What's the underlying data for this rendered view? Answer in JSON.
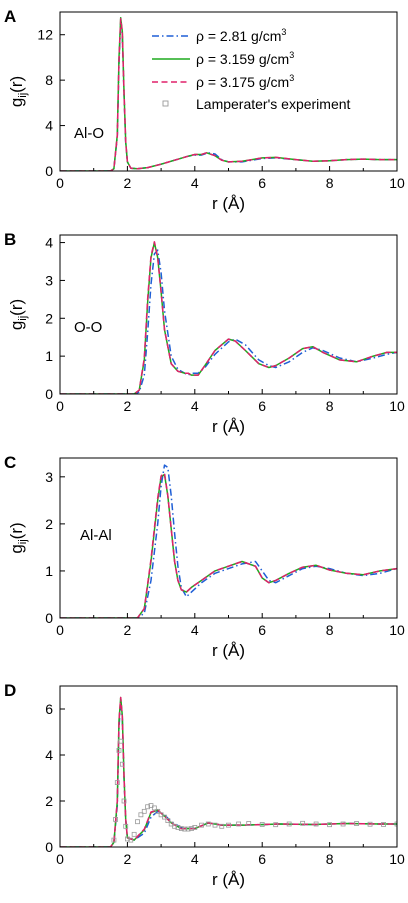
{
  "legend": {
    "entries": [
      {
        "label": "ρ = 2.81 g/cm",
        "sup": "3"
      },
      {
        "label": "ρ = 3.159 g/cm",
        "sup": "3"
      },
      {
        "label": "ρ = 3.175 g/cm",
        "sup": "3"
      },
      {
        "label": "Lamperater's experiment",
        "sup": ""
      }
    ]
  },
  "colors": {
    "rho_2_81": "#1f5fd6",
    "rho_3_159": "#1faa1f",
    "rho_3_175": "#e0206a",
    "experiment": "#9a9a9a"
  },
  "chart_data": [
    {
      "type": "line",
      "panel_letter": "A",
      "annotation": "Al-O",
      "xlabel": "r (Å)",
      "ylabel": "g",
      "ylabel_sub": "ij",
      "ylabel_suffix": "(r)",
      "xlim": [
        0,
        10
      ],
      "ylim": [
        0,
        14
      ],
      "xticks": [
        0,
        2,
        4,
        6,
        8,
        10
      ],
      "yticks": [
        0,
        4,
        8,
        12
      ],
      "series": [
        {
          "name": "ρ = 2.81 g/cm3",
          "style": "dashdot",
          "color": "#1f5fd6",
          "x": [
            0,
            1.5,
            1.6,
            1.7,
            1.75,
            1.8,
            1.85,
            1.9,
            1.95,
            2.0,
            2.1,
            2.3,
            2.6,
            3.0,
            3.4,
            3.8,
            4.0,
            4.2,
            4.4,
            4.6,
            4.8,
            5.0,
            5.4,
            6.0,
            6.4,
            7.0,
            7.5,
            8.0,
            8.5,
            9.0,
            9.5,
            10
          ],
          "y": [
            0,
            0,
            0.2,
            3.0,
            9.5,
            13.2,
            12.0,
            6.8,
            2.5,
            0.8,
            0.25,
            0.2,
            0.3,
            0.6,
            0.95,
            1.3,
            1.4,
            1.4,
            1.6,
            1.5,
            1.0,
            0.8,
            0.8,
            1.1,
            1.15,
            1.0,
            0.85,
            0.9,
            1.0,
            1.05,
            1.0,
            1.0
          ]
        },
        {
          "name": "ρ = 3.159 g/cm3",
          "style": "solid",
          "color": "#1faa1f",
          "x": [
            0,
            1.5,
            1.6,
            1.7,
            1.75,
            1.8,
            1.85,
            1.9,
            1.95,
            2.0,
            2.1,
            2.3,
            2.6,
            3.0,
            3.4,
            3.8,
            4.0,
            4.2,
            4.35,
            4.6,
            4.8,
            5.0,
            5.4,
            6.0,
            6.4,
            7.0,
            7.5,
            8.0,
            8.5,
            9.0,
            9.5,
            10
          ],
          "y": [
            0,
            0,
            0.2,
            3.2,
            10.0,
            13.5,
            12.3,
            7.0,
            2.6,
            0.8,
            0.25,
            0.2,
            0.3,
            0.6,
            0.95,
            1.3,
            1.45,
            1.45,
            1.6,
            1.35,
            0.95,
            0.8,
            0.85,
            1.15,
            1.2,
            1.0,
            0.85,
            0.9,
            1.0,
            1.05,
            1.0,
            1.0
          ]
        },
        {
          "name": "ρ = 3.175 g/cm3",
          "style": "dashed",
          "color": "#e0206a",
          "x": [
            0,
            1.5,
            1.6,
            1.7,
            1.75,
            1.8,
            1.85,
            1.9,
            1.95,
            2.0,
            2.1,
            2.3,
            2.6,
            3.0,
            3.4,
            3.8,
            4.0,
            4.2,
            4.35,
            4.6,
            4.8,
            5.0,
            5.4,
            6.0,
            6.4,
            7.0,
            7.5,
            8.0,
            8.5,
            9.0,
            9.5,
            10
          ],
          "y": [
            0,
            0,
            0.2,
            3.1,
            9.8,
            13.4,
            12.2,
            6.9,
            2.6,
            0.8,
            0.25,
            0.2,
            0.3,
            0.6,
            0.95,
            1.3,
            1.45,
            1.45,
            1.6,
            1.35,
            0.95,
            0.8,
            0.85,
            1.15,
            1.2,
            1.0,
            0.85,
            0.9,
            1.0,
            1.05,
            1.0,
            1.0
          ]
        }
      ]
    },
    {
      "type": "line",
      "panel_letter": "B",
      "annotation": "O-O",
      "xlabel": "r (Å)",
      "ylabel": "g",
      "ylabel_sub": "ij",
      "ylabel_suffix": "(r)",
      "xlim": [
        0,
        10
      ],
      "ylim": [
        0,
        4.2
      ],
      "xticks": [
        0,
        2,
        4,
        6,
        8,
        10
      ],
      "yticks": [
        0,
        1,
        2,
        3,
        4
      ],
      "series": [
        {
          "name": "ρ = 2.81 g/cm3",
          "style": "dashdot",
          "color": "#1f5fd6",
          "x": [
            0,
            2.2,
            2.35,
            2.5,
            2.6,
            2.7,
            2.8,
            2.9,
            3.0,
            3.1,
            3.3,
            3.5,
            3.7,
            3.8,
            3.9,
            4.1,
            4.3,
            4.6,
            5.0,
            5.2,
            5.5,
            5.9,
            6.2,
            6.4,
            6.8,
            7.2,
            7.5,
            7.8,
            8.3,
            8.8,
            9.3,
            9.7,
            10
          ],
          "y": [
            0,
            0,
            0.05,
            0.5,
            1.6,
            2.9,
            3.7,
            3.8,
            3.2,
            2.2,
            1.0,
            0.65,
            0.55,
            0.5,
            0.55,
            0.55,
            0.7,
            1.05,
            1.38,
            1.45,
            1.3,
            0.9,
            0.75,
            0.7,
            0.85,
            1.1,
            1.22,
            1.15,
            0.95,
            0.85,
            0.95,
            1.05,
            1.1
          ]
        },
        {
          "name": "ρ = 3.159 g/cm3",
          "style": "solid",
          "color": "#1faa1f",
          "x": [
            0,
            2.2,
            2.35,
            2.5,
            2.6,
            2.7,
            2.8,
            2.9,
            3.0,
            3.1,
            3.3,
            3.5,
            3.7,
            3.8,
            3.9,
            4.1,
            4.3,
            4.6,
            5.0,
            5.2,
            5.5,
            5.9,
            6.2,
            6.4,
            6.8,
            7.2,
            7.5,
            7.8,
            8.3,
            8.8,
            9.3,
            9.7,
            10
          ],
          "y": [
            0,
            0,
            0.1,
            0.9,
            2.4,
            3.6,
            4.0,
            3.6,
            2.7,
            1.7,
            0.8,
            0.6,
            0.55,
            0.55,
            0.5,
            0.5,
            0.75,
            1.15,
            1.45,
            1.4,
            1.15,
            0.8,
            0.7,
            0.75,
            0.95,
            1.2,
            1.25,
            1.1,
            0.9,
            0.85,
            1.0,
            1.1,
            1.1
          ]
        },
        {
          "name": "ρ = 3.175 g/cm3",
          "style": "dashed",
          "color": "#e0206a",
          "x": [
            0,
            2.2,
            2.35,
            2.5,
            2.6,
            2.7,
            2.8,
            2.9,
            3.0,
            3.1,
            3.3,
            3.5,
            3.7,
            3.8,
            3.9,
            4.1,
            4.3,
            4.6,
            5.0,
            5.2,
            5.5,
            5.9,
            6.2,
            6.4,
            6.8,
            7.2,
            7.5,
            7.8,
            8.3,
            8.8,
            9.3,
            9.7,
            10
          ],
          "y": [
            0,
            0,
            0.1,
            0.95,
            2.5,
            3.65,
            4.02,
            3.6,
            2.7,
            1.7,
            0.8,
            0.6,
            0.55,
            0.55,
            0.5,
            0.5,
            0.75,
            1.15,
            1.45,
            1.4,
            1.15,
            0.8,
            0.7,
            0.75,
            0.95,
            1.2,
            1.25,
            1.1,
            0.9,
            0.85,
            1.0,
            1.1,
            1.1
          ]
        }
      ]
    },
    {
      "type": "line",
      "panel_letter": "C",
      "annotation": "Al-Al",
      "xlabel": "r (Å)",
      "ylabel": "g",
      "ylabel_sub": "ij",
      "ylabel_suffix": "(r)",
      "xlim": [
        0,
        10
      ],
      "ylim": [
        0,
        3.4
      ],
      "xticks": [
        0,
        2,
        4,
        6,
        8,
        10
      ],
      "yticks": [
        0,
        1,
        2,
        3
      ],
      "series": [
        {
          "name": "ρ = 2.81 g/cm3",
          "style": "dashdot",
          "color": "#1f5fd6",
          "x": [
            0,
            2.3,
            2.5,
            2.7,
            2.9,
            3.0,
            3.1,
            3.2,
            3.3,
            3.4,
            3.5,
            3.6,
            3.75,
            3.9,
            4.2,
            4.6,
            5.0,
            5.4,
            5.8,
            6.0,
            6.2,
            6.4,
            6.8,
            7.2,
            7.6,
            8.0,
            8.5,
            9.0,
            9.5,
            10
          ],
          "y": [
            0,
            0,
            0.1,
            0.8,
            2.0,
            2.8,
            3.25,
            3.2,
            2.6,
            1.8,
            1.1,
            0.65,
            0.45,
            0.55,
            0.75,
            0.95,
            1.05,
            1.15,
            1.2,
            1.0,
            0.8,
            0.75,
            0.9,
            1.05,
            1.1,
            1.05,
            0.95,
            0.9,
            0.95,
            1.05
          ]
        },
        {
          "name": "ρ = 3.159 g/cm3",
          "style": "solid",
          "color": "#1faa1f",
          "x": [
            0,
            2.3,
            2.5,
            2.7,
            2.9,
            3.0,
            3.1,
            3.2,
            3.3,
            3.4,
            3.5,
            3.6,
            3.75,
            3.9,
            4.2,
            4.6,
            5.0,
            5.4,
            5.8,
            6.0,
            6.2,
            6.4,
            6.8,
            7.2,
            7.6,
            8.0,
            8.5,
            9.0,
            9.5,
            10
          ],
          "y": [
            0,
            0,
            0.2,
            1.2,
            2.5,
            3.0,
            3.05,
            2.6,
            1.9,
            1.2,
            0.8,
            0.6,
            0.55,
            0.65,
            0.8,
            1.0,
            1.1,
            1.2,
            1.1,
            0.85,
            0.75,
            0.8,
            0.95,
            1.08,
            1.12,
            1.02,
            0.95,
            0.92,
            1.0,
            1.05
          ]
        },
        {
          "name": "ρ = 3.175 g/cm3",
          "style": "dashed",
          "color": "#e0206a",
          "x": [
            0,
            2.3,
            2.5,
            2.7,
            2.9,
            3.0,
            3.1,
            3.2,
            3.3,
            3.4,
            3.5,
            3.6,
            3.75,
            3.9,
            4.2,
            4.6,
            5.0,
            5.4,
            5.8,
            6.0,
            6.2,
            6.4,
            6.8,
            7.2,
            7.6,
            8.0,
            8.5,
            9.0,
            9.5,
            10
          ],
          "y": [
            0,
            0,
            0.2,
            1.25,
            2.55,
            3.02,
            3.08,
            2.6,
            1.9,
            1.2,
            0.8,
            0.6,
            0.55,
            0.65,
            0.8,
            1.0,
            1.1,
            1.2,
            1.1,
            0.85,
            0.75,
            0.8,
            0.95,
            1.08,
            1.12,
            1.02,
            0.95,
            0.92,
            1.0,
            1.05
          ]
        }
      ]
    },
    {
      "type": "line",
      "panel_letter": "D",
      "annotation": "",
      "xlabel": "r (Å)",
      "ylabel": "",
      "ylabel_sub": "",
      "ylabel_suffix": "",
      "xlim": [
        0,
        10
      ],
      "ylim": [
        0,
        7
      ],
      "xticks": [
        0,
        2,
        4,
        6,
        8,
        10
      ],
      "yticks": [
        0,
        2,
        4,
        6
      ],
      "series": [
        {
          "name": "ρ = 2.81 g/cm3",
          "style": "dashdot",
          "color": "#1f5fd6",
          "x": [
            0,
            1.5,
            1.6,
            1.7,
            1.75,
            1.8,
            1.85,
            1.9,
            1.95,
            2.0,
            2.2,
            2.5,
            2.7,
            2.9,
            3.1,
            3.3,
            3.6,
            4.0,
            4.4,
            4.8,
            5.5,
            6.5,
            7.5,
            8.5,
            9.5,
            10
          ],
          "y": [
            0,
            0,
            0.2,
            1.8,
            5.2,
            6.4,
            5.6,
            3.0,
            1.2,
            0.4,
            0.3,
            0.6,
            1.3,
            1.55,
            1.4,
            1.1,
            0.85,
            0.8,
            1.05,
            0.95,
            0.95,
            1.0,
            0.98,
            1.02,
            1.0,
            1.0
          ]
        },
        {
          "name": "ρ = 3.159 g/cm3",
          "style": "solid",
          "color": "#1faa1f",
          "x": [
            0,
            1.5,
            1.6,
            1.7,
            1.75,
            1.8,
            1.85,
            1.9,
            1.95,
            2.0,
            2.2,
            2.5,
            2.7,
            2.9,
            3.1,
            3.3,
            3.6,
            4.0,
            4.4,
            4.8,
            5.5,
            6.5,
            7.5,
            8.5,
            9.5,
            10
          ],
          "y": [
            0,
            0,
            0.2,
            2.0,
            5.5,
            6.5,
            5.7,
            3.1,
            1.2,
            0.4,
            0.3,
            0.75,
            1.5,
            1.6,
            1.35,
            1.05,
            0.8,
            0.8,
            1.05,
            0.95,
            0.95,
            1.0,
            0.98,
            1.02,
            1.0,
            1.0
          ]
        },
        {
          "name": "ρ = 3.175 g/cm3",
          "style": "dashed",
          "color": "#e0206a",
          "x": [
            0,
            1.5,
            1.6,
            1.7,
            1.75,
            1.8,
            1.85,
            1.9,
            1.95,
            2.0,
            2.2,
            2.5,
            2.7,
            2.9,
            3.1,
            3.3,
            3.6,
            4.0,
            4.4,
            4.8,
            5.5,
            6.5,
            7.5,
            8.5,
            9.5,
            10
          ],
          "y": [
            0,
            0,
            0.2,
            2.0,
            5.5,
            6.5,
            5.7,
            3.1,
            1.2,
            0.4,
            0.3,
            0.78,
            1.52,
            1.6,
            1.35,
            1.05,
            0.8,
            0.8,
            1.05,
            0.95,
            0.95,
            1.0,
            0.98,
            1.02,
            1.0,
            1.0
          ]
        },
        {
          "name": "Lamperater's experiment",
          "style": "markers",
          "color": "#9a9a9a",
          "x": [
            1.6,
            1.65,
            1.7,
            1.75,
            1.8,
            1.85,
            1.9,
            1.95,
            2.0,
            2.1,
            2.2,
            2.3,
            2.4,
            2.5,
            2.6,
            2.7,
            2.8,
            2.9,
            3.0,
            3.1,
            3.2,
            3.3,
            3.4,
            3.5,
            3.6,
            3.7,
            3.8,
            3.9,
            4.0,
            4.2,
            4.4,
            4.6,
            4.8,
            5.0,
            5.3,
            5.6,
            6.0,
            6.4,
            6.8,
            7.2,
            7.6,
            8.0,
            8.4,
            8.8,
            9.2,
            9.6,
            10
          ],
          "y": [
            0.3,
            1.2,
            2.8,
            4.2,
            4.6,
            3.6,
            2.0,
            0.9,
            0.35,
            0.3,
            0.55,
            1.1,
            1.4,
            1.55,
            1.75,
            1.8,
            1.7,
            1.55,
            1.4,
            1.3,
            1.15,
            1.0,
            0.9,
            0.85,
            0.8,
            0.78,
            0.78,
            0.8,
            0.85,
            0.95,
            1.0,
            0.95,
            0.9,
            0.95,
            1.0,
            1.02,
            0.98,
            0.97,
            1.0,
            1.03,
            1.0,
            0.97,
            1.0,
            1.02,
            0.99,
            0.98,
            1.0
          ]
        }
      ]
    }
  ]
}
